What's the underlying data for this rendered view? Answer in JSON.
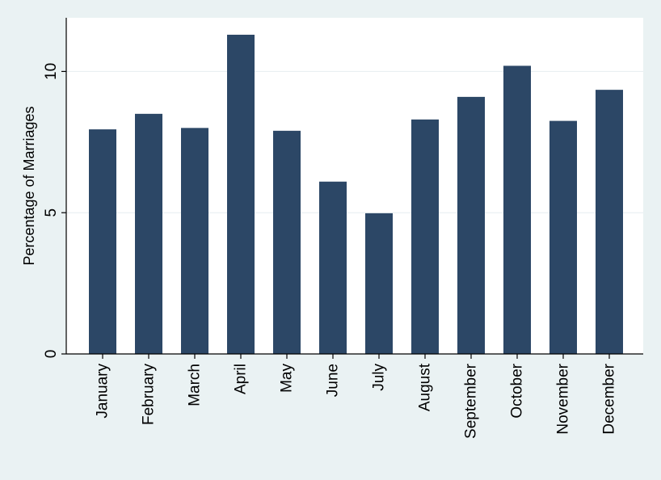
{
  "chart_data": {
    "type": "bar",
    "title": "",
    "xlabel": "",
    "ylabel": "Percentage of Marriages",
    "categories": [
      "January",
      "February",
      "March",
      "April",
      "May",
      "June",
      "July",
      "August",
      "September",
      "October",
      "November",
      "December"
    ],
    "values": [
      7.95,
      8.5,
      8.0,
      11.3,
      7.9,
      6.1,
      4.98,
      8.3,
      9.1,
      10.2,
      8.25,
      9.35
    ],
    "ylim": [
      0,
      11.9
    ],
    "yticks": [
      0,
      5,
      10
    ],
    "grid": "horizontal",
    "legend": "none",
    "colors": {
      "bar": "#2c4766",
      "plot_background": "#ffffff",
      "page_background": "#eaf2f3",
      "grid": "#e6eef0",
      "axis": "#000000"
    }
  }
}
